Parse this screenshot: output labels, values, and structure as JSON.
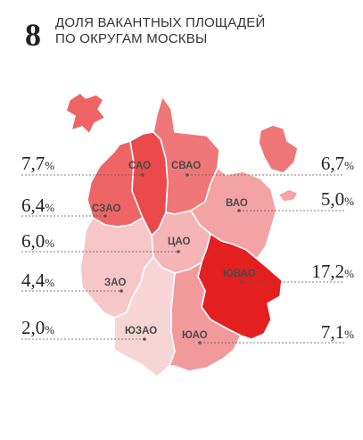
{
  "header": {
    "number": "8",
    "line1": "ДОЛЯ ВАКАНТНЫХ ПЛОЩАДЕЙ",
    "line2": "ПО ОКРУГАМ МОСКВЫ"
  },
  "percent_sign": "%",
  "colors": {
    "background": "#ffffff",
    "darkest": "#e31f1f",
    "dark": "#ea4a4c",
    "medium": "#ef7777",
    "light": "#f4a3a5",
    "lightest": "#f8cfcf",
    "leader_line": "#555555"
  },
  "districts": [
    {
      "key": "sao",
      "label": "САО",
      "value": "7,7",
      "color": "#ea4a4c"
    },
    {
      "key": "svao",
      "label": "СВАО",
      "value": "6,7",
      "color": "#ef7777"
    },
    {
      "key": "szao",
      "label": "СЗАО",
      "value": "6,4",
      "color": "#ef6464"
    },
    {
      "key": "vao",
      "label": "ВАО",
      "value": "5,0",
      "color": "#f4a3a5"
    },
    {
      "key": "cao",
      "label": "ЦАО",
      "value": "6,0",
      "color": "#f5b4b6"
    },
    {
      "key": "uvao",
      "label": "ЮВАО",
      "value": "17,2",
      "color": "#e31f1f"
    },
    {
      "key": "zao",
      "label": "ЗАО",
      "value": "4,4",
      "color": "#f7c6c6"
    },
    {
      "key": "yuzao",
      "label": "ЮЗАО",
      "value": "2,0",
      "color": "#f8d5d5"
    },
    {
      "key": "uao",
      "label": "ЮАО",
      "value": "7,1",
      "color": "#f2999b"
    }
  ],
  "chart_data": {
    "type": "choropleth",
    "title": "ДОЛЯ ВАКАНТНЫХ ПЛОЩАДЕЙ ПО ОКРУГАМ МОСКВЫ",
    "categories": [
      "САО",
      "СВАО",
      "СЗАО",
      "ВАО",
      "ЦАО",
      "ЮВАО",
      "ЗАО",
      "ЮЗАО",
      "ЮАО"
    ],
    "values": [
      7.7,
      6.7,
      6.4,
      5.0,
      6.0,
      17.2,
      4.4,
      2.0,
      7.1
    ],
    "unit": "%"
  }
}
